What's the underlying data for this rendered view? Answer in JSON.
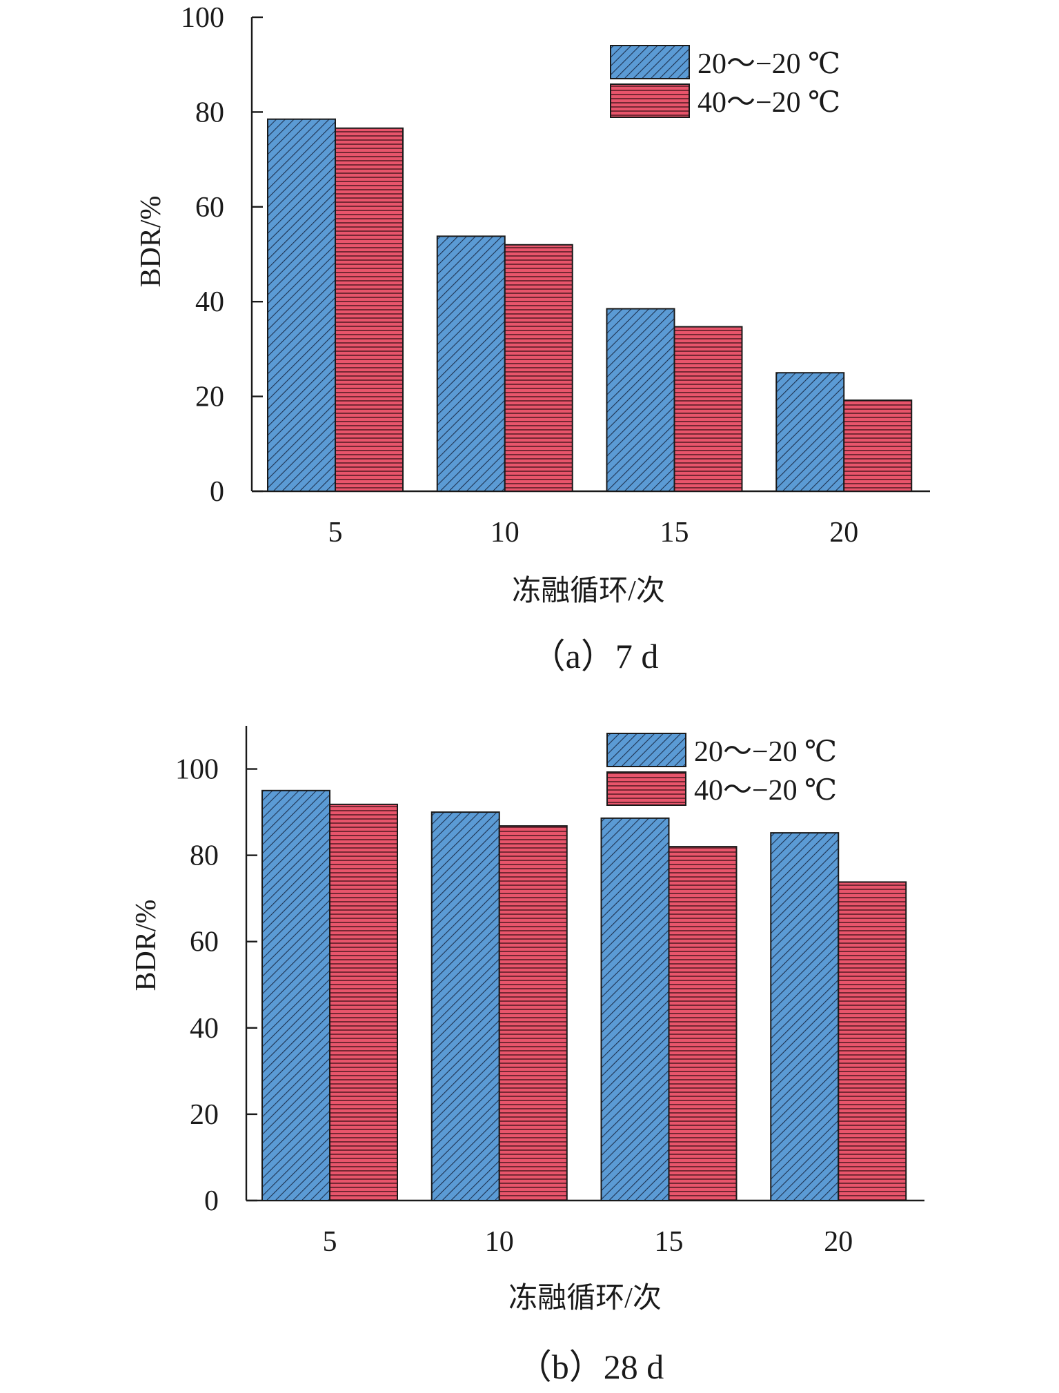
{
  "chart_data": [
    {
      "type": "bar",
      "panel_label": "（a）7 d",
      "xlabel": "冻融循环/次",
      "ylabel": "BDR/%",
      "categories": [
        "5",
        "10",
        "15",
        "20"
      ],
      "ylim": [
        0,
        100
      ],
      "yticks": [
        0,
        20,
        40,
        60,
        80,
        100
      ],
      "legend_position": "top-right",
      "series": [
        {
          "name": "20～−20 ℃",
          "color": "#5b9bd5",
          "pattern": "diagonal-hatch",
          "values": [
            78.5,
            53.8,
            38.5,
            25.0
          ]
        },
        {
          "name": "40～−20 ℃",
          "color": "#e8556b",
          "pattern": "horizontal-lines",
          "values": [
            76.6,
            52.0,
            34.7,
            19.2
          ]
        }
      ]
    },
    {
      "type": "bar",
      "panel_label": "（b）28 d",
      "xlabel": "冻融循环/次",
      "ylabel": "BDR/%",
      "categories": [
        "5",
        "10",
        "15",
        "20"
      ],
      "ylim": [
        0,
        110
      ],
      "yticks": [
        0,
        20,
        40,
        60,
        80,
        100
      ],
      "legend_position": "top-right",
      "series": [
        {
          "name": "20～−20 ℃",
          "color": "#5b9bd5",
          "pattern": "diagonal-hatch",
          "values": [
            95.0,
            90.0,
            88.6,
            85.2
          ]
        },
        {
          "name": "40～−20 ℃",
          "color": "#e8556b",
          "pattern": "horizontal-lines",
          "values": [
            91.8,
            86.8,
            82.0,
            73.8
          ]
        }
      ]
    }
  ]
}
